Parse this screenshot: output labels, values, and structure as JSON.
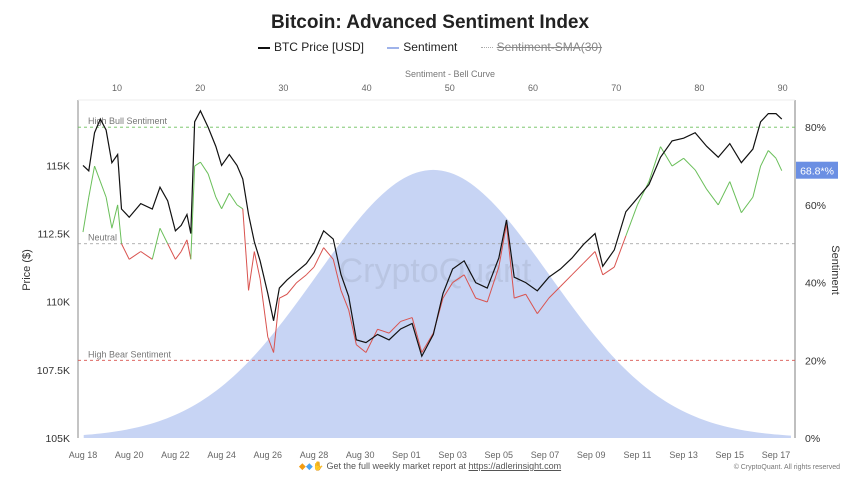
{
  "chart_data": {
    "type": "line",
    "title": "Bitcoin: Advanced Sentiment Index",
    "legend": [
      "BTC Price [USD]",
      "Sentiment",
      "Sentiment-SMA(30)"
    ],
    "legend_placement": "top",
    "top_axis": {
      "label": "Sentiment - Bell Curve",
      "ticks": [
        10,
        20,
        30,
        40,
        50,
        60,
        70,
        80,
        90
      ],
      "range": [
        6,
        91
      ]
    },
    "x_ticks": [
      "Aug 18",
      "Aug 20",
      "Aug 22",
      "Aug 24",
      "Aug 26",
      "Aug 28",
      "Aug 30",
      "Sep 01",
      "Sep 03",
      "Sep 05",
      "Sep 07",
      "Sep 09",
      "Sep 11",
      "Sep 13",
      "Sep 15",
      "Sep 17"
    ],
    "y_left": {
      "label": "Price ($)",
      "ticks": [
        "105K",
        "107.5K",
        "110K",
        "112.5K",
        "115K"
      ],
      "range": [
        105000,
        117400
      ]
    },
    "y_right": {
      "label": "Sentiment",
      "ticks": [
        "0%",
        "20%",
        "40%",
        "60%",
        "80%"
      ],
      "range": [
        0,
        87
      ]
    },
    "reference_lines": [
      {
        "label": "High Bull Sentiment",
        "value": 80,
        "color": "#6abf5a"
      },
      {
        "label": "Neutral",
        "value": 50,
        "color": "#999999"
      },
      {
        "label": "High Bear Sentiment",
        "value": 20,
        "color": "#d9534f"
      }
    ],
    "current_sentiment_label": "68.8*%",
    "colors": {
      "price": "#111111",
      "sentiment_bull": "#6abf5a",
      "sentiment_bear": "#d9534f",
      "bell": "#c7d4f4",
      "badge": "#6b8fe3"
    },
    "bell_curve": {
      "mean": 48,
      "sd": 14,
      "peak_sentiment_pct": 69
    },
    "price": [
      [
        "Aug 18 00:00",
        115000
      ],
      [
        "Aug 18 06:00",
        114800
      ],
      [
        "Aug 18 12:00",
        116200
      ],
      [
        "Aug 18 18:00",
        116700
      ],
      [
        "Aug 19 00:00",
        116300
      ],
      [
        "Aug 19 06:00",
        115100
      ],
      [
        "Aug 19 12:00",
        115400
      ],
      [
        "Aug 19 16:00",
        113400
      ],
      [
        "Aug 20 00:00",
        113100
      ],
      [
        "Aug 20 12:00",
        113600
      ],
      [
        "Aug 21 00:00",
        113400
      ],
      [
        "Aug 21 08:00",
        114200
      ],
      [
        "Aug 21 16:00",
        113700
      ],
      [
        "Aug 22 00:00",
        112600
      ],
      [
        "Aug 22 06:00",
        112800
      ],
      [
        "Aug 22 12:00",
        113200
      ],
      [
        "Aug 22 16:00",
        112500
      ],
      [
        "Aug 22 20:00",
        116600
      ],
      [
        "Aug 23 02:00",
        117000
      ],
      [
        "Aug 23 10:00",
        116400
      ],
      [
        "Aug 23 18:00",
        115700
      ],
      [
        "Aug 24 00:00",
        115000
      ],
      [
        "Aug 24 08:00",
        115400
      ],
      [
        "Aug 24 16:00",
        115000
      ],
      [
        "Aug 24 22:00",
        114500
      ],
      [
        "Aug 25 04:00",
        113200
      ],
      [
        "Aug 25 10:00",
        112200
      ],
      [
        "Aug 25 16:00",
        111500
      ],
      [
        "Aug 26 00:00",
        110300
      ],
      [
        "Aug 26 06:00",
        109300
      ],
      [
        "Aug 26 12:00",
        110500
      ],
      [
        "Aug 26 20:00",
        110800
      ],
      [
        "Aug 27 06:00",
        111100
      ],
      [
        "Aug 27 16:00",
        111400
      ],
      [
        "Aug 28 00:00",
        111800
      ],
      [
        "Aug 28 10:00",
        112600
      ],
      [
        "Aug 28 20:00",
        112300
      ],
      [
        "Aug 29 04:00",
        111000
      ],
      [
        "Aug 29 12:00",
        110200
      ],
      [
        "Aug 29 20:00",
        108600
      ],
      [
        "Aug 30 06:00",
        108500
      ],
      [
        "Aug 30 18:00",
        108800
      ],
      [
        "Aug 31 06:00",
        108600
      ],
      [
        "Aug 31 18:00",
        109000
      ],
      [
        "Sep 01 06:00",
        109200
      ],
      [
        "Sep 01 16:00",
        108000
      ],
      [
        "Sep 02 04:00",
        108800
      ],
      [
        "Sep 02 14:00",
        110300
      ],
      [
        "Sep 03 00:00",
        111200
      ],
      [
        "Sep 03 12:00",
        111500
      ],
      [
        "Sep 04 00:00",
        110700
      ],
      [
        "Sep 04 12:00",
        110500
      ],
      [
        "Sep 05 00:00",
        111600
      ],
      [
        "Sep 05 08:00",
        113000
      ],
      [
        "Sep 05 16:00",
        110900
      ],
      [
        "Sep 06 04:00",
        110700
      ],
      [
        "Sep 06 16:00",
        110400
      ],
      [
        "Sep 07 04:00",
        110900
      ],
      [
        "Sep 07 16:00",
        111200
      ],
      [
        "Sep 08 04:00",
        111600
      ],
      [
        "Sep 08 16:00",
        112100
      ],
      [
        "Sep 09 04:00",
        112500
      ],
      [
        "Sep 09 12:00",
        111300
      ],
      [
        "Sep 10 00:00",
        111900
      ],
      [
        "Sep 10 12:00",
        113300
      ],
      [
        "Sep 11 00:00",
        113800
      ],
      [
        "Sep 11 12:00",
        114300
      ],
      [
        "Sep 12 00:00",
        115300
      ],
      [
        "Sep 12 12:00",
        115900
      ],
      [
        "Sep 13 00:00",
        116000
      ],
      [
        "Sep 13 12:00",
        116200
      ],
      [
        "Sep 14 00:00",
        115700
      ],
      [
        "Sep 14 12:00",
        115300
      ],
      [
        "Sep 15 00:00",
        115800
      ],
      [
        "Sep 15 12:00",
        115100
      ],
      [
        "Sep 16 00:00",
        115600
      ],
      [
        "Sep 16 08:00",
        116600
      ],
      [
        "Sep 16 16:00",
        116900
      ],
      [
        "Sep 17 00:00",
        116900
      ],
      [
        "Sep 17 06:00",
        116700
      ]
    ],
    "sentiment": [
      [
        "Aug 18 00:00",
        53
      ],
      [
        "Aug 18 06:00",
        62
      ],
      [
        "Aug 18 12:00",
        70
      ],
      [
        "Aug 18 18:00",
        66
      ],
      [
        "Aug 19 00:00",
        62
      ],
      [
        "Aug 19 06:00",
        54
      ],
      [
        "Aug 19 12:00",
        60
      ],
      [
        "Aug 19 16:00",
        50
      ],
      [
        "Aug 20 00:00",
        46
      ],
      [
        "Aug 20 12:00",
        48
      ],
      [
        "Aug 21 00:00",
        46
      ],
      [
        "Aug 21 08:00",
        54
      ],
      [
        "Aug 21 16:00",
        50
      ],
      [
        "Aug 22 00:00",
        46
      ],
      [
        "Aug 22 06:00",
        48
      ],
      [
        "Aug 22 12:00",
        51
      ],
      [
        "Aug 22 16:00",
        46
      ],
      [
        "Aug 22 20:00",
        70
      ],
      [
        "Aug 23 02:00",
        71
      ],
      [
        "Aug 23 10:00",
        68
      ],
      [
        "Aug 23 18:00",
        62
      ],
      [
        "Aug 24 00:00",
        59
      ],
      [
        "Aug 24 08:00",
        63
      ],
      [
        "Aug 24 16:00",
        60
      ],
      [
        "Aug 24 22:00",
        59
      ],
      [
        "Aug 25 04:00",
        38
      ],
      [
        "Aug 25 10:00",
        48
      ],
      [
        "Aug 25 16:00",
        41
      ],
      [
        "Aug 26 00:00",
        26
      ],
      [
        "Aug 26 06:00",
        22
      ],
      [
        "Aug 26 12:00",
        36
      ],
      [
        "Aug 26 20:00",
        37
      ],
      [
        "Aug 27 06:00",
        40
      ],
      [
        "Aug 27 16:00",
        42
      ],
      [
        "Aug 28 00:00",
        44
      ],
      [
        "Aug 28 10:00",
        49
      ],
      [
        "Aug 28 20:00",
        46
      ],
      [
        "Aug 29 04:00",
        38
      ],
      [
        "Aug 29 12:00",
        33
      ],
      [
        "Aug 29 20:00",
        24
      ],
      [
        "Aug 30 06:00",
        22
      ],
      [
        "Aug 30 18:00",
        28
      ],
      [
        "Aug 31 06:00",
        27
      ],
      [
        "Aug 31 18:00",
        30
      ],
      [
        "Sep 01 06:00",
        31
      ],
      [
        "Sep 01 16:00",
        22
      ],
      [
        "Sep 02 04:00",
        27
      ],
      [
        "Sep 02 14:00",
        36
      ],
      [
        "Sep 03 00:00",
        40
      ],
      [
        "Sep 03 12:00",
        42
      ],
      [
        "Sep 04 00:00",
        36
      ],
      [
        "Sep 04 12:00",
        35
      ],
      [
        "Sep 05 00:00",
        44
      ],
      [
        "Sep 05 08:00",
        55
      ],
      [
        "Sep 05 16:00",
        36
      ],
      [
        "Sep 06 04:00",
        37
      ],
      [
        "Sep 06 16:00",
        32
      ],
      [
        "Sep 07 04:00",
        36
      ],
      [
        "Sep 07 16:00",
        39
      ],
      [
        "Sep 08 04:00",
        42
      ],
      [
        "Sep 08 16:00",
        45
      ],
      [
        "Sep 09 04:00",
        48
      ],
      [
        "Sep 09 12:00",
        42
      ],
      [
        "Sep 10 00:00",
        44
      ],
      [
        "Sep 10 12:00",
        52
      ],
      [
        "Sep 11 00:00",
        60
      ],
      [
        "Sep 11 12:00",
        66
      ],
      [
        "Sep 12 00:00",
        75
      ],
      [
        "Sep 12 12:00",
        70
      ],
      [
        "Sep 13 00:00",
        72
      ],
      [
        "Sep 13 12:00",
        69
      ],
      [
        "Sep 14 00:00",
        64
      ],
      [
        "Sep 14 12:00",
        60
      ],
      [
        "Sep 15 00:00",
        66
      ],
      [
        "Sep 15 12:00",
        58
      ],
      [
        "Sep 16 00:00",
        62
      ],
      [
        "Sep 16 08:00",
        70
      ],
      [
        "Sep 16 16:00",
        74
      ],
      [
        "Sep 17 00:00",
        72
      ],
      [
        "Sep 17 06:00",
        68.8
      ]
    ]
  },
  "watermark": "CryptoQuant",
  "footer": {
    "icons": [
      "orange-diamond-icon",
      "blue-gem-icon",
      "raised-hands-icon"
    ],
    "text": "Get the full weekly market report at",
    "link": "https://adlerinsight.com",
    "copyright": "© CryptoQuant. All rights reserved"
  }
}
